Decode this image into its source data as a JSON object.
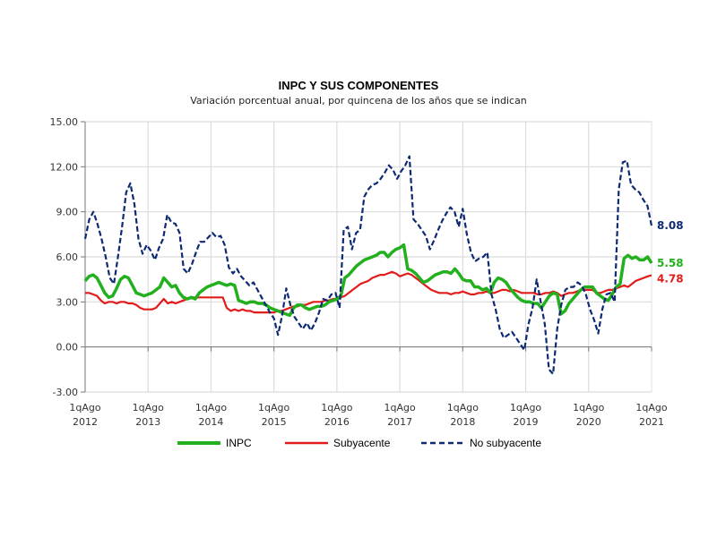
{
  "chart_data": {
    "type": "line",
    "title": "INPC Y SUS COMPONENTES",
    "subtitle": "Variación porcentual anual, por quincena de los años que se indican",
    "xlabel": "",
    "ylabel": "",
    "ylim": [
      -3,
      15
    ],
    "yticks": [
      15,
      12,
      9,
      6,
      3,
      0,
      -3
    ],
    "ytick_labels": [
      "15.00",
      "12.00",
      "9.00",
      "6.00",
      "3.00",
      "0.00",
      "-3.00"
    ],
    "xlim": [
      0,
      9
    ],
    "x_unit": "years since 1q Ago 2012, monthly samples",
    "xtick_labels": [
      {
        "line1": "1qAgo",
        "line2": "2012"
      },
      {
        "line1": "1qAgo",
        "line2": "2013"
      },
      {
        "line1": "1qAgo",
        "line2": "2014"
      },
      {
        "line1": "1qAgo",
        "line2": "2015"
      },
      {
        "line1": "1qAgo",
        "line2": "2016"
      },
      {
        "line1": "1qAgo",
        "line2": "2017"
      },
      {
        "line1": "1qAgo",
        "line2": "2018"
      },
      {
        "line1": "1qAgo",
        "line2": "2019"
      },
      {
        "line1": "1qAgo",
        "line2": "2020"
      },
      {
        "line1": "1qAgo",
        "line2": "2021"
      }
    ],
    "grid": true,
    "legend_position": "bottom",
    "series": [
      {
        "name": "INPC",
        "color": "#22b01e",
        "dash": "solid",
        "end_label": "5.58",
        "values": [
          4.4,
          4.7,
          4.8,
          4.6,
          4.1,
          3.6,
          3.3,
          3.4,
          3.9,
          4.5,
          4.7,
          4.6,
          4.1,
          3.6,
          3.5,
          3.4,
          3.5,
          3.6,
          3.8,
          4.0,
          4.6,
          4.3,
          4.0,
          4.1,
          3.6,
          3.3,
          3.2,
          3.3,
          3.2,
          3.6,
          3.8,
          4.0,
          4.1,
          4.2,
          4.3,
          4.2,
          4.1,
          4.2,
          4.1,
          3.1,
          3.0,
          2.9,
          3.0,
          3.0,
          2.9,
          2.9,
          2.8,
          2.6,
          2.5,
          2.4,
          2.3,
          2.2,
          2.1,
          2.6,
          2.8,
          2.8,
          2.6,
          2.5,
          2.6,
          2.7,
          2.7,
          2.8,
          3.0,
          3.1,
          3.2,
          3.4,
          4.6,
          4.8,
          5.1,
          5.4,
          5.6,
          5.8,
          5.9,
          6.0,
          6.1,
          6.3,
          6.3,
          6.0,
          6.3,
          6.5,
          6.6,
          6.8,
          5.2,
          5.1,
          4.9,
          4.6,
          4.3,
          4.4,
          4.6,
          4.8,
          4.9,
          5.0,
          5.0,
          4.9,
          5.2,
          4.9,
          4.5,
          4.4,
          4.4,
          4.0,
          4.0,
          3.8,
          3.9,
          3.6,
          4.3,
          4.6,
          4.5,
          4.3,
          3.9,
          3.6,
          3.3,
          3.1,
          3.0,
          3.0,
          2.9,
          2.9,
          2.6,
          3.0,
          3.4,
          3.6,
          3.5,
          2.2,
          2.4,
          2.9,
          3.2,
          3.5,
          3.8,
          4.0,
          4.0,
          4.0,
          3.6,
          3.4,
          3.2,
          3.1,
          3.5,
          4.0,
          4.2,
          5.9,
          6.1,
          5.9,
          6.0,
          5.8,
          5.8,
          6.0,
          5.58
        ]
      },
      {
        "name": "Subyacente",
        "color": "#e21b1b",
        "dash": "solid",
        "end_label": "4.78",
        "values": [
          3.6,
          3.6,
          3.5,
          3.4,
          3.1,
          2.9,
          3.0,
          3.0,
          2.9,
          3.0,
          3.0,
          2.9,
          2.9,
          2.8,
          2.6,
          2.5,
          2.5,
          2.5,
          2.6,
          2.9,
          3.2,
          2.9,
          3.0,
          2.9,
          3.0,
          3.1,
          3.2,
          3.3,
          3.3,
          3.3,
          3.3,
          3.3,
          3.3,
          3.3,
          3.3,
          3.3,
          2.6,
          2.4,
          2.5,
          2.4,
          2.5,
          2.4,
          2.4,
          2.3,
          2.3,
          2.3,
          2.3,
          2.3,
          2.3,
          2.4,
          2.4,
          2.5,
          2.6,
          2.7,
          2.7,
          2.8,
          2.8,
          2.9,
          3.0,
          3.0,
          3.0,
          3.1,
          3.1,
          3.2,
          3.2,
          3.3,
          3.4,
          3.6,
          3.8,
          4.0,
          4.2,
          4.3,
          4.4,
          4.6,
          4.7,
          4.8,
          4.8,
          4.9,
          5.0,
          4.9,
          4.7,
          4.8,
          4.9,
          4.8,
          4.6,
          4.4,
          4.2,
          4.0,
          3.8,
          3.7,
          3.6,
          3.6,
          3.6,
          3.5,
          3.6,
          3.6,
          3.7,
          3.6,
          3.5,
          3.5,
          3.6,
          3.6,
          3.7,
          3.6,
          3.6,
          3.7,
          3.8,
          3.8,
          3.7,
          3.8,
          3.7,
          3.6,
          3.6,
          3.6,
          3.6,
          3.5,
          3.5,
          3.6,
          3.6,
          3.7,
          3.6,
          3.4,
          3.5,
          3.6,
          3.6,
          3.7,
          3.8,
          3.8,
          3.8,
          3.8,
          3.6,
          3.6,
          3.7,
          3.8,
          3.8,
          3.9,
          4.0,
          4.1,
          4.0,
          4.2,
          4.4,
          4.5,
          4.6,
          4.7,
          4.78
        ]
      },
      {
        "name": "No subyacente",
        "color": "#0e2a72",
        "dash": "dashed",
        "end_label": "8.08",
        "values": [
          7.2,
          8.5,
          9.0,
          8.2,
          7.2,
          6.0,
          4.6,
          4.2,
          6.0,
          8.0,
          10.3,
          10.9,
          9.5,
          7.2,
          6.2,
          6.8,
          6.4,
          5.8,
          6.6,
          7.2,
          8.8,
          8.3,
          8.2,
          7.6,
          5.2,
          4.9,
          5.5,
          6.3,
          7.0,
          7.0,
          7.3,
          7.6,
          7.3,
          7.4,
          6.8,
          5.3,
          4.9,
          5.2,
          4.7,
          4.4,
          4.1,
          4.3,
          3.8,
          3.3,
          2.8,
          2.3,
          1.9,
          0.8,
          2.1,
          3.9,
          2.8,
          2.0,
          1.6,
          1.2,
          1.6,
          1.1,
          1.6,
          2.3,
          3.2,
          3.1,
          3.5,
          3.6,
          2.6,
          7.8,
          8.0,
          6.5,
          7.6,
          7.8,
          10.0,
          10.5,
          10.8,
          10.9,
          11.2,
          11.6,
          12.1,
          11.8,
          11.2,
          11.7,
          12.1,
          12.7,
          8.5,
          8.2,
          7.8,
          7.4,
          6.5,
          7.1,
          7.8,
          8.4,
          8.9,
          9.3,
          9.0,
          8.0,
          9.2,
          7.5,
          6.3,
          5.7,
          5.9,
          6.0,
          6.3,
          3.5,
          2.5,
          1.2,
          0.6,
          0.8,
          1.0,
          0.6,
          0.2,
          -0.2,
          1.5,
          2.6,
          4.5,
          3.0,
          1.5,
          -1.5,
          -1.8,
          1.2,
          2.8,
          3.8,
          4.0,
          4.0,
          4.3,
          4.1,
          3.5,
          2.5,
          1.8,
          0.9,
          2.5,
          3.5,
          3.6,
          3.0,
          10.5,
          12.3,
          12.4,
          10.8,
          10.5,
          10.3,
          9.8,
          9.4,
          8.08
        ]
      }
    ]
  },
  "legend": {
    "items": [
      {
        "label": "INPC"
      },
      {
        "label": "Subyacente"
      },
      {
        "label": "No subyacente"
      }
    ]
  }
}
